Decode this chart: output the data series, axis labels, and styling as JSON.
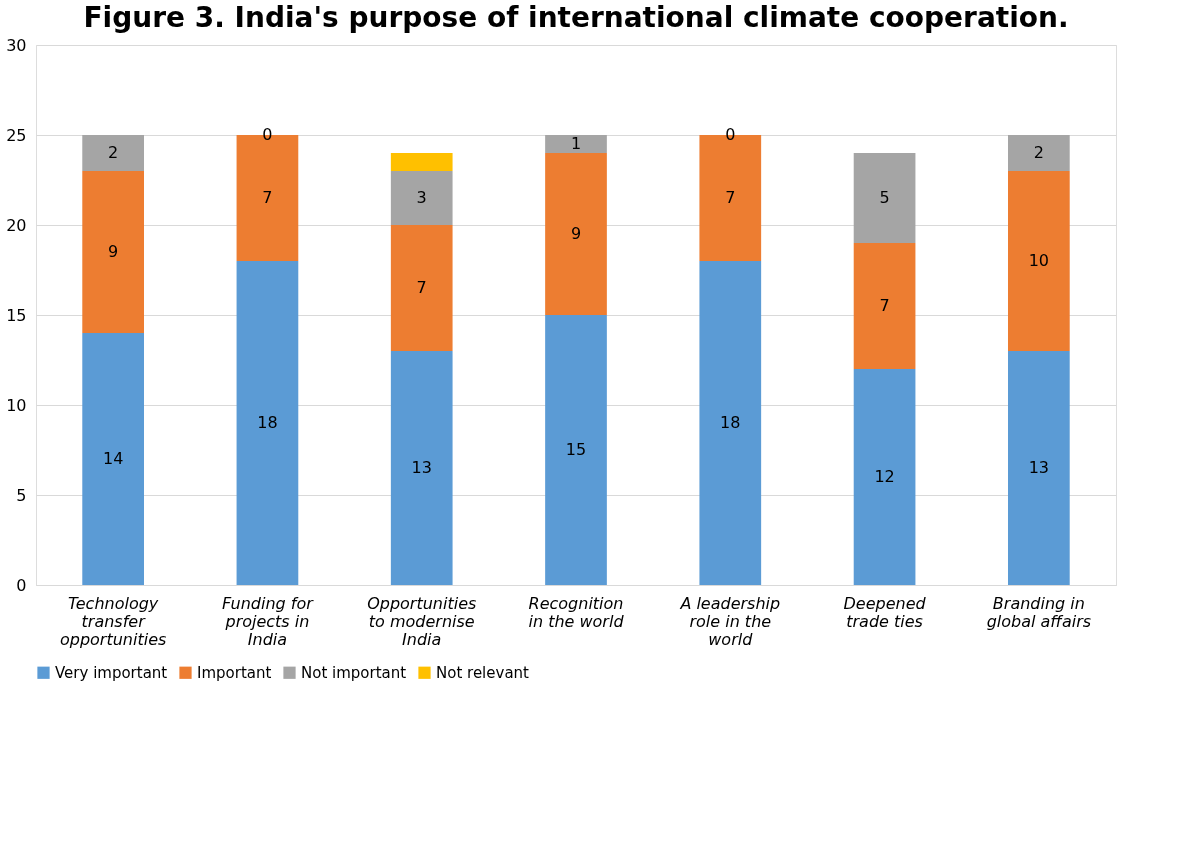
{
  "chart_data": {
    "type": "bar",
    "title": "Figure 3. India's purpose of international climate cooperation.",
    "categories": [
      "Technology transfer opportunities",
      "Funding for projects in India",
      "Opportunities to modernise India",
      "Recognition in the world",
      "A leadership role in the world",
      "Deepened trade ties",
      "Branding in global affairs"
    ],
    "stacked": true,
    "series": [
      {
        "name": "Very important",
        "color": "#5b9bd5",
        "values": [
          14,
          18,
          13,
          15,
          18,
          12,
          13
        ],
        "value_labels": [
          "14",
          "18",
          "13",
          "15",
          "18",
          "12",
          "13"
        ]
      },
      {
        "name": "Important",
        "color": "#ed7d31",
        "values": [
          9,
          7,
          7,
          9,
          7,
          7,
          10
        ],
        "value_labels": [
          "9",
          "7",
          "7",
          "9",
          "7",
          "7",
          "10"
        ]
      },
      {
        "name": "Not important",
        "color": "#a5a5a5",
        "values": [
          2,
          0,
          3,
          1,
          0,
          5,
          2
        ],
        "value_labels": [
          "2",
          "0",
          "3",
          "1",
          "0",
          "5",
          "2"
        ]
      },
      {
        "name": "Not relevant",
        "color": "#ffc000",
        "values": [
          null,
          null,
          1,
          null,
          null,
          null,
          null
        ],
        "value_labels": [
          null,
          null,
          null,
          null,
          null,
          null,
          null
        ]
      }
    ],
    "ylim": [
      0,
      30
    ],
    "yticks": [
      0,
      5,
      10,
      15,
      20,
      25,
      30
    ],
    "grid": "y",
    "legend": "bottom"
  }
}
